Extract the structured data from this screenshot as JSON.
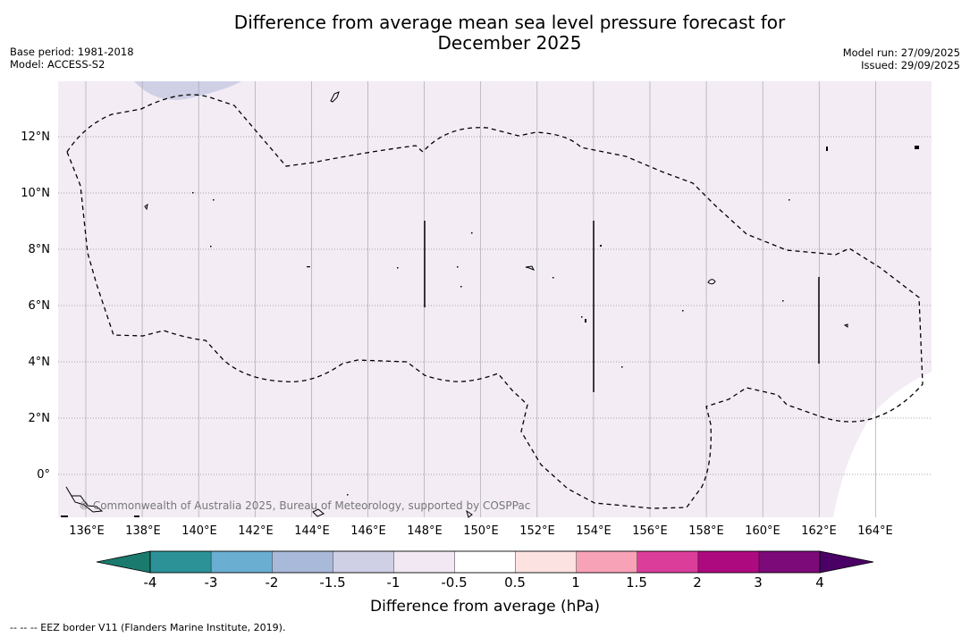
{
  "title": "Difference from average mean sea level pressure forecast for December 2025",
  "base_period": "Base period: 1981-2018",
  "model": "Model: ACCESS-S2",
  "model_run": "Model run: 27/09/2025",
  "issued": "Issued: 29/09/2025",
  "copyright": "© Commonwealth of Australia 2025, Bureau of Meteorology, supported by COSPPac",
  "latitudes": [
    "12°N",
    "10°N",
    "8°N",
    "6°N",
    "4°N",
    "2°N",
    "0°"
  ],
  "longitudes": [
    "136°E",
    "138°E",
    "140°E",
    "142°E",
    "144°E",
    "146°E",
    "148°E",
    "150°E",
    "152°E",
    "154°E",
    "156°E",
    "158°E",
    "160°E",
    "162°E",
    "164°E"
  ],
  "colorbar": {
    "title": "Difference from average (hPa)",
    "ticks": [
      "-4",
      "-3",
      "-2",
      "-1.5",
      "-1",
      "-0.5",
      "0.5",
      "1",
      "1.5",
      "2",
      "3",
      "4"
    ],
    "colors": [
      "#1a7a6e",
      "#2c9297",
      "#6aaed2",
      "#a8b9da",
      "#cfd0e6",
      "#f1e8f3",
      "#ffffff",
      "#fde2e2",
      "#f8a2b8",
      "#db3e9a",
      "#ad0a80",
      "#7c0a78",
      "#4b0066"
    ]
  },
  "map_colors": {
    "background": "#f3ecf5",
    "low_patch": "#cfd0e6",
    "white_region": "#ffffff"
  },
  "legend_note": "--  --  -- EEZ border V11 (Flanders Marine Institute, 2019)."
}
